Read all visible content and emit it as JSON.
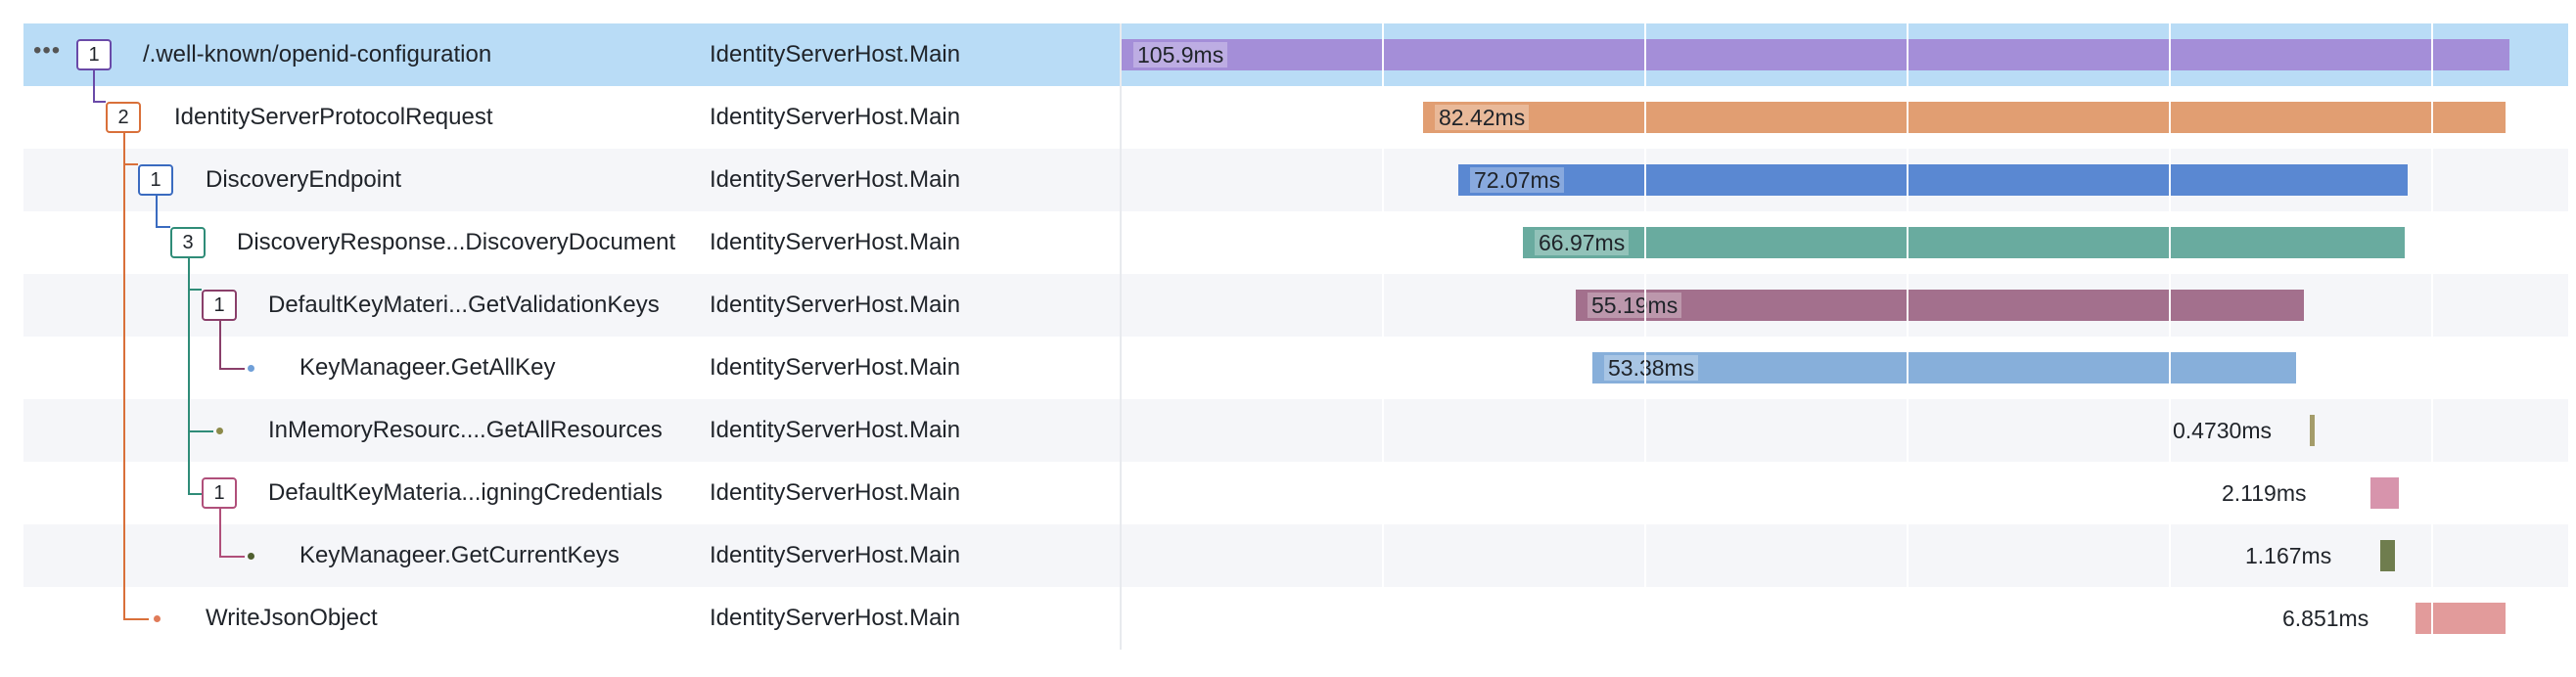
{
  "trace": {
    "service_label": "IdentityServerHost.Main",
    "more_label": "•••",
    "spans": [
      {
        "name": "/.well-known/openid-configuration",
        "service": "IdentityServerHost.Main",
        "badge": "1",
        "duration": "105.9ms",
        "color": "#a48ed8"
      },
      {
        "name": "IdentityServerProtocolRequest",
        "service": "IdentityServerHost.Main",
        "badge": "2",
        "duration": "82.42ms",
        "color": "#e19e72"
      },
      {
        "name": "DiscoveryEndpoint",
        "service": "IdentityServerHost.Main",
        "badge": "1",
        "duration": "72.07ms",
        "color": "#5a88d2"
      },
      {
        "name": "DiscoveryResponse...DiscoveryDocument",
        "service": "IdentityServerHost.Main",
        "badge": "3",
        "duration": "66.97ms",
        "color": "#69ab9f"
      },
      {
        "name": "DefaultKeyMateri...GetValidationKeys",
        "service": "IdentityServerHost.Main",
        "badge": "1",
        "duration": "55.19ms",
        "color": "#a3708d"
      },
      {
        "name": "KeyManageer.GetAllKey",
        "service": "IdentityServerHost.Main",
        "badge": "",
        "duration": "53.38ms",
        "color": "#87afda"
      },
      {
        "name": "InMemoryResourc....GetAllResources",
        "service": "IdentityServerHost.Main",
        "badge": "",
        "duration": "0.4730ms",
        "color": "#a49c6a"
      },
      {
        "name": "DefaultKeyMateria...igningCredentials",
        "service": "IdentityServerHost.Main",
        "badge": "1",
        "duration": "2.119ms",
        "color": "#d794ac"
      },
      {
        "name": "KeyManageer.GetCurrentKeys",
        "service": "IdentityServerHost.Main",
        "badge": "",
        "duration": "1.167ms",
        "color": "#6f7d4e"
      },
      {
        "name": "WriteJsonObject",
        "service": "IdentityServerHost.Main",
        "badge": "",
        "duration": "6.851ms",
        "color": "#e29b9b"
      }
    ]
  }
}
